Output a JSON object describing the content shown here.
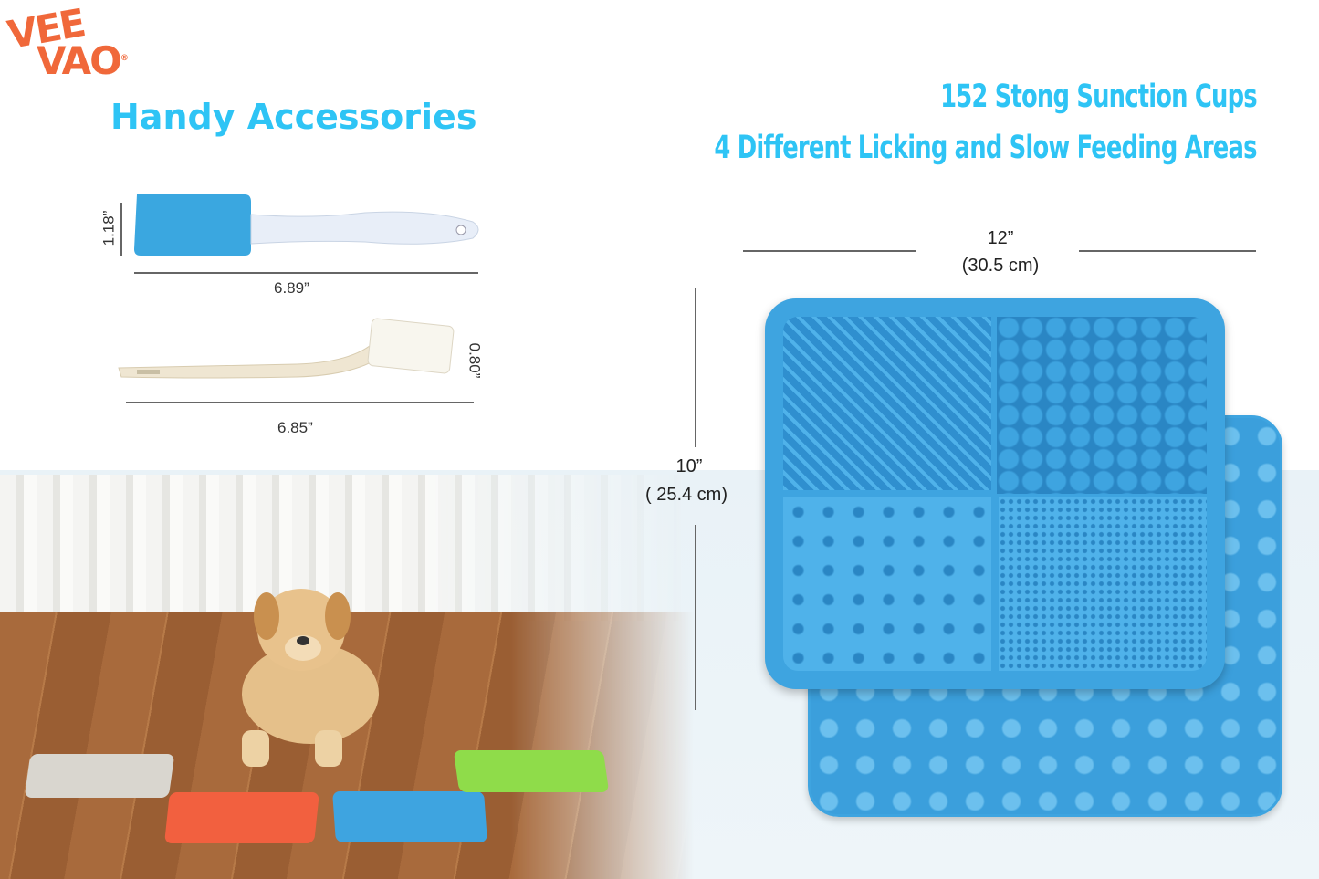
{
  "brand": {
    "logo_line1": "VEE",
    "logo_line2": "VAO",
    "registered": "®"
  },
  "headings": {
    "accessories": "Handy Accessories",
    "feature1": "152 Stong Sunction Cups",
    "feature2": "4 Different Licking and Slow Feeding Areas"
  },
  "spatula": {
    "length": "6.89”",
    "height": "1.18”"
  },
  "brush": {
    "length": "6.85”",
    "height": "0.80”"
  },
  "mat": {
    "width_in": "12”",
    "width_cm": "(30.5 cm)",
    "height_in": "10”",
    "height_cm": "( 25.4 cm)",
    "color": "#3ea4e0"
  },
  "scene": {
    "mat_colors": [
      "#d9d6cf",
      "#f2603f",
      "#3ea4e0",
      "#8fdc4a"
    ]
  }
}
